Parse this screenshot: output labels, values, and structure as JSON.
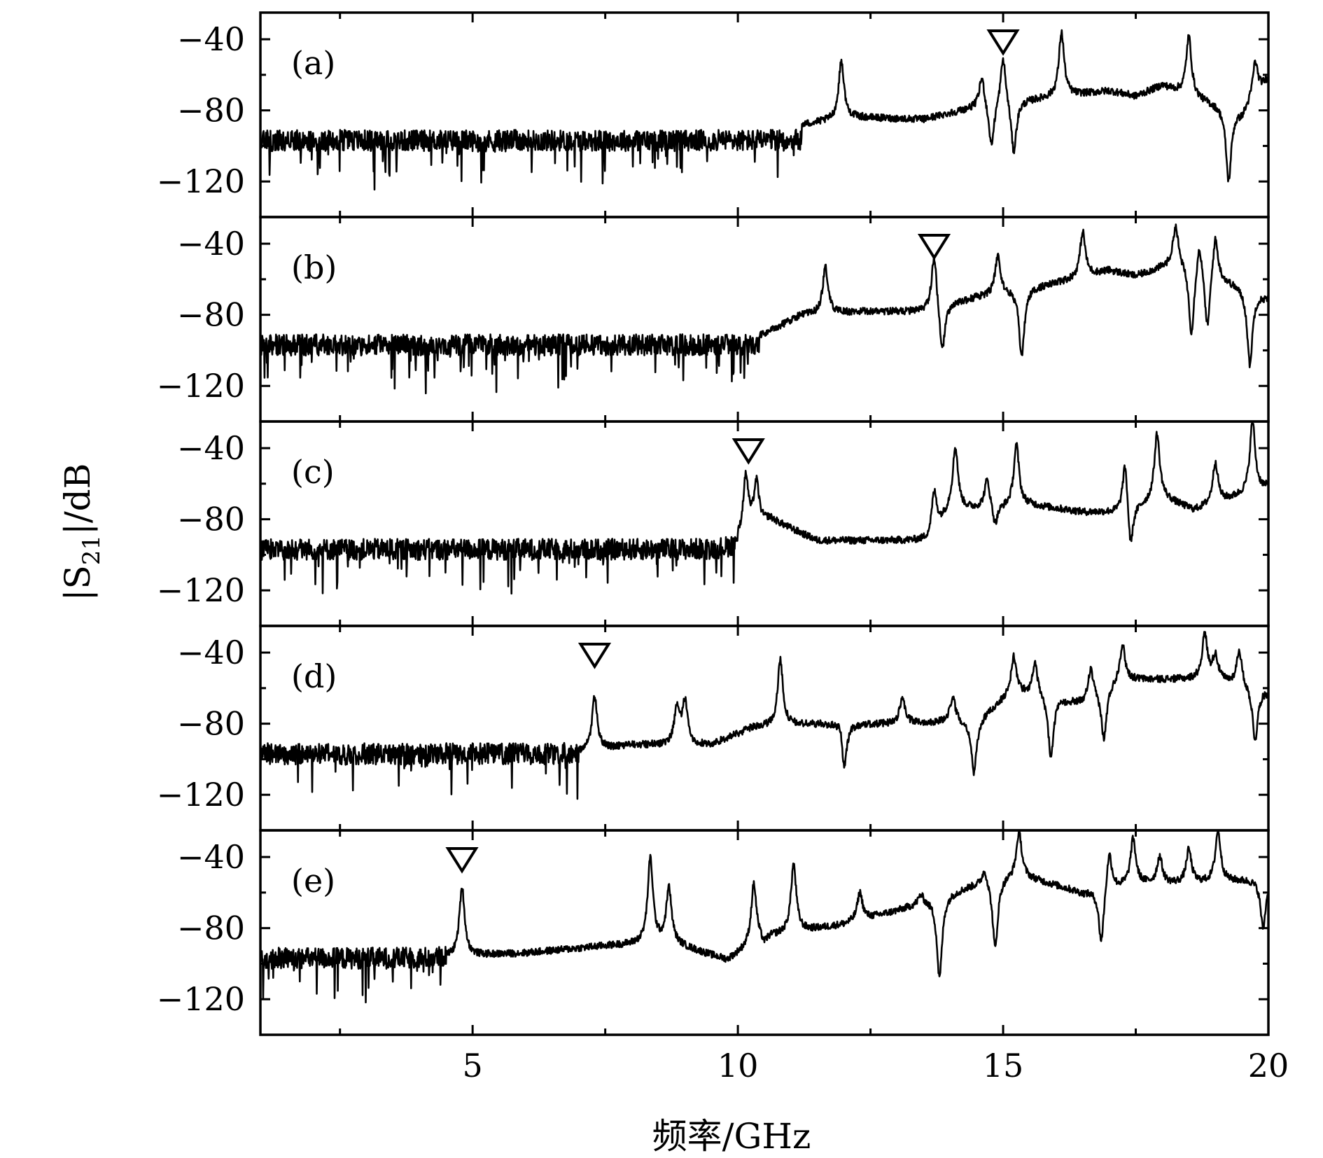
{
  "chart_data": {
    "type": "line",
    "xlabel": "频率/GHz",
    "ylabel": "|S21|/dB",
    "ylabel_main": "|S",
    "ylabel_sub": "21",
    "ylabel_tail": "|/dB",
    "xlim": [
      1,
      20
    ],
    "ylim": [
      -140,
      -25
    ],
    "x_ticks": [
      5,
      10,
      15,
      20
    ],
    "x_tick_labels": [
      "5",
      "10",
      "15",
      "20"
    ],
    "y_ticks": [
      -40,
      -80,
      -120
    ],
    "y_tick_labels": [
      "−40",
      "−80",
      "−120"
    ],
    "noise_floor_db": -97,
    "panels": [
      {
        "label": "(a)",
        "marker_freq_ghz": 15.0,
        "knee_ghz": 11.2,
        "upper_baseline": [
          [
            11.2,
            -88
          ],
          [
            12.2,
            -84
          ],
          [
            13.5,
            -85
          ],
          [
            14.5,
            -78
          ],
          [
            15.5,
            -74
          ],
          [
            17.0,
            -69
          ],
          [
            17.5,
            -72
          ],
          [
            18.0,
            -66
          ],
          [
            19.5,
            -82
          ],
          [
            20,
            -62
          ]
        ],
        "peaks": [
          {
            "f": 11.95,
            "db": -52,
            "kind": "peak"
          },
          {
            "f": 14.6,
            "db": -60,
            "kind": "peak"
          },
          {
            "f": 14.78,
            "db": -102,
            "kind": "dip"
          },
          {
            "f": 15.0,
            "db": -48,
            "kind": "peak"
          },
          {
            "f": 15.2,
            "db": -105,
            "kind": "dip"
          },
          {
            "f": 16.1,
            "db": -36,
            "kind": "peak"
          },
          {
            "f": 18.5,
            "db": -38,
            "kind": "peak"
          },
          {
            "f": 19.25,
            "db": -120,
            "kind": "dip"
          },
          {
            "f": 19.75,
            "db": -52,
            "kind": "peak"
          }
        ]
      },
      {
        "label": "(b)",
        "marker_freq_ghz": 13.7,
        "knee_ghz": 10.4,
        "upper_baseline": [
          [
            10.4,
            -92
          ],
          [
            11.2,
            -80
          ],
          [
            12.5,
            -78
          ],
          [
            13.5,
            -78
          ],
          [
            14.5,
            -70
          ],
          [
            16.0,
            -62
          ],
          [
            17.0,
            -55
          ],
          [
            17.5,
            -58
          ],
          [
            18.3,
            -50
          ],
          [
            20,
            -70
          ]
        ],
        "peaks": [
          {
            "f": 11.65,
            "db": -53,
            "kind": "peak"
          },
          {
            "f": 13.7,
            "db": -44,
            "kind": "peak"
          },
          {
            "f": 13.85,
            "db": -104,
            "kind": "dip"
          },
          {
            "f": 14.9,
            "db": -46,
            "kind": "peak"
          },
          {
            "f": 15.35,
            "db": -104,
            "kind": "dip"
          },
          {
            "f": 16.5,
            "db": -33,
            "kind": "peak"
          },
          {
            "f": 18.25,
            "db": -29,
            "kind": "peak"
          },
          {
            "f": 18.55,
            "db": -92,
            "kind": "dip"
          },
          {
            "f": 18.7,
            "db": -35,
            "kind": "peak"
          },
          {
            "f": 18.85,
            "db": -90,
            "kind": "dip"
          },
          {
            "f": 19.0,
            "db": -33,
            "kind": "peak"
          },
          {
            "f": 19.65,
            "db": -108,
            "kind": "dip"
          }
        ]
      },
      {
        "label": "(c)",
        "marker_freq_ghz": 10.2,
        "knee_ghz": 10.0,
        "upper_baseline": [
          [
            10.0,
            -92
          ],
          [
            10.6,
            -80
          ],
          [
            11.5,
            -92
          ],
          [
            13.6,
            -92
          ],
          [
            14.0,
            -75
          ],
          [
            15.5,
            -72
          ],
          [
            16.5,
            -76
          ],
          [
            17.2,
            -76
          ],
          [
            18.0,
            -68
          ],
          [
            18.6,
            -75
          ],
          [
            20,
            -62
          ]
        ],
        "peaks": [
          {
            "f": 10.15,
            "db": -56,
            "kind": "peak"
          },
          {
            "f": 10.35,
            "db": -60,
            "kind": "peak"
          },
          {
            "f": 13.7,
            "db": -65,
            "kind": "peak"
          },
          {
            "f": 14.1,
            "db": -40,
            "kind": "peak"
          },
          {
            "f": 14.7,
            "db": -57,
            "kind": "peak"
          },
          {
            "f": 14.85,
            "db": -85,
            "kind": "dip"
          },
          {
            "f": 15.25,
            "db": -38,
            "kind": "peak"
          },
          {
            "f": 17.3,
            "db": -45,
            "kind": "peak"
          },
          {
            "f": 17.4,
            "db": -100,
            "kind": "dip"
          },
          {
            "f": 17.9,
            "db": -32,
            "kind": "peak"
          },
          {
            "f": 19.0,
            "db": -48,
            "kind": "peak"
          },
          {
            "f": 19.7,
            "db": -25,
            "kind": "peak"
          }
        ]
      },
      {
        "label": "(d)",
        "marker_freq_ghz": 7.3,
        "knee_ghz": 7.0,
        "upper_baseline": [
          [
            7.0,
            -96
          ],
          [
            8.0,
            -92
          ],
          [
            9.5,
            -92
          ],
          [
            10.3,
            -82
          ],
          [
            11.5,
            -80
          ],
          [
            13.0,
            -80
          ],
          [
            14.5,
            -78
          ],
          [
            15.2,
            -62
          ],
          [
            16.5,
            -68
          ],
          [
            17.2,
            -55
          ],
          [
            18.0,
            -55
          ],
          [
            19.0,
            -55
          ],
          [
            20,
            -62
          ]
        ],
        "peaks": [
          {
            "f": 7.3,
            "db": -65,
            "kind": "peak"
          },
          {
            "f": 8.85,
            "db": -72,
            "kind": "peak"
          },
          {
            "f": 9.0,
            "db": -68,
            "kind": "peak"
          },
          {
            "f": 10.8,
            "db": -44,
            "kind": "peak"
          },
          {
            "f": 11.95,
            "db": -70,
            "kind": "peak"
          },
          {
            "f": 12.0,
            "db": -110,
            "kind": "dip"
          },
          {
            "f": 13.1,
            "db": -65,
            "kind": "peak"
          },
          {
            "f": 14.05,
            "db": -64,
            "kind": "peak"
          },
          {
            "f": 14.45,
            "db": -108,
            "kind": "dip"
          },
          {
            "f": 15.2,
            "db": -42,
            "kind": "peak"
          },
          {
            "f": 15.6,
            "db": -45,
            "kind": "peak"
          },
          {
            "f": 15.9,
            "db": -100,
            "kind": "dip"
          },
          {
            "f": 16.65,
            "db": -48,
            "kind": "peak"
          },
          {
            "f": 16.9,
            "db": -90,
            "kind": "dip"
          },
          {
            "f": 17.25,
            "db": -35,
            "kind": "peak"
          },
          {
            "f": 18.8,
            "db": -30,
            "kind": "peak"
          },
          {
            "f": 19.0,
            "db": -42,
            "kind": "peak"
          },
          {
            "f": 19.45,
            "db": -38,
            "kind": "peak"
          },
          {
            "f": 19.75,
            "db": -90,
            "kind": "dip"
          }
        ]
      },
      {
        "label": "(e)",
        "marker_freq_ghz": 4.8,
        "knee_ghz": 4.5,
        "upper_baseline": [
          [
            4.5,
            -96
          ],
          [
            6.0,
            -94
          ],
          [
            7.5,
            -90
          ],
          [
            8.7,
            -88
          ],
          [
            9.8,
            -98
          ],
          [
            10.5,
            -85
          ],
          [
            12.0,
            -78
          ],
          [
            13.0,
            -70
          ],
          [
            14.5,
            -55
          ],
          [
            15.3,
            -50
          ],
          [
            16.5,
            -60
          ],
          [
            17.5,
            -55
          ],
          [
            18.5,
            -55
          ],
          [
            20,
            -52
          ]
        ],
        "peaks": [
          {
            "f": 4.8,
            "db": -57,
            "kind": "peak"
          },
          {
            "f": 8.35,
            "db": -41,
            "kind": "peak"
          },
          {
            "f": 8.7,
            "db": -58,
            "kind": "peak"
          },
          {
            "f": 10.3,
            "db": -55,
            "kind": "peak"
          },
          {
            "f": 10.5,
            "db": -90,
            "kind": "dip"
          },
          {
            "f": 11.05,
            "db": -44,
            "kind": "peak"
          },
          {
            "f": 12.3,
            "db": -60,
            "kind": "peak"
          },
          {
            "f": 13.45,
            "db": -60,
            "kind": "peak"
          },
          {
            "f": 13.8,
            "db": -108,
            "kind": "dip"
          },
          {
            "f": 14.65,
            "db": -45,
            "kind": "peak"
          },
          {
            "f": 14.85,
            "db": -92,
            "kind": "dip"
          },
          {
            "f": 15.3,
            "db": -25,
            "kind": "peak"
          },
          {
            "f": 16.85,
            "db": -90,
            "kind": "dip"
          },
          {
            "f": 17.0,
            "db": -35,
            "kind": "peak"
          },
          {
            "f": 17.45,
            "db": -30,
            "kind": "peak"
          },
          {
            "f": 17.95,
            "db": -40,
            "kind": "peak"
          },
          {
            "f": 18.5,
            "db": -36,
            "kind": "peak"
          },
          {
            "f": 19.05,
            "db": -25,
            "kind": "peak"
          },
          {
            "f": 19.9,
            "db": -80,
            "kind": "dip"
          }
        ]
      }
    ]
  }
}
